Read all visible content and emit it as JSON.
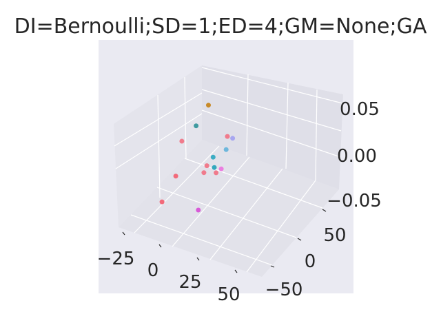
{
  "chart_data": {
    "type": "scatter",
    "projection": "3d",
    "title": "DI=Bernoulli;SD=1;ED=4;GM=None;GA",
    "xlabel": "",
    "ylabel": "",
    "zlabel": "",
    "xlim": [
      -40,
      75
    ],
    "ylim": [
      -75,
      90
    ],
    "zlim": [
      -0.075,
      0.09
    ],
    "x_ticks": [
      "−25",
      "0",
      "25",
      "50"
    ],
    "y_ticks": [
      "−50",
      "0",
      "50"
    ],
    "z_ticks": [
      "−0.05",
      "0.00",
      "0.05"
    ],
    "grid": true,
    "legend": "none",
    "background_color": "#eaeaf2",
    "points": [
      {
        "x": -30,
        "y": 40,
        "z": -0.01,
        "color": "#f07b8c"
      },
      {
        "x": -22,
        "y": 60,
        "z": 0.008,
        "color": "#3f9aa0"
      },
      {
        "x": -8,
        "y": 70,
        "z": 0.055,
        "color": "#c88a28"
      },
      {
        "x": 2,
        "y": -5,
        "z": -0.005,
        "color": "#f26a7a"
      },
      {
        "x": -5,
        "y": -25,
        "z": -0.045,
        "color": "#f26a7a"
      },
      {
        "x": 18,
        "y": 40,
        "z": -0.02,
        "color": "#f07b8c"
      },
      {
        "x": 22,
        "y": 30,
        "z": -0.02,
        "color": "#f07b8c"
      },
      {
        "x": 26,
        "y": 50,
        "z": -0.04,
        "color": "#f07b8c"
      },
      {
        "x": 30,
        "y": 40,
        "z": 0.01,
        "color": "#3cadc4"
      },
      {
        "x": 38,
        "y": 60,
        "z": 0.04,
        "color": "#f07b8c"
      },
      {
        "x": 42,
        "y": 30,
        "z": 0.01,
        "color": "#33a8bd"
      },
      {
        "x": 48,
        "y": 60,
        "z": 0.045,
        "color": "#a7a6f0"
      },
      {
        "x": 50,
        "y": -10,
        "z": -0.03,
        "color": "#d85ad8"
      },
      {
        "x": 55,
        "y": 40,
        "z": 0.05,
        "color": "#6eb7dc"
      },
      {
        "x": 65,
        "y": 20,
        "z": 0.04,
        "color": "#ea7ee0"
      }
    ]
  }
}
